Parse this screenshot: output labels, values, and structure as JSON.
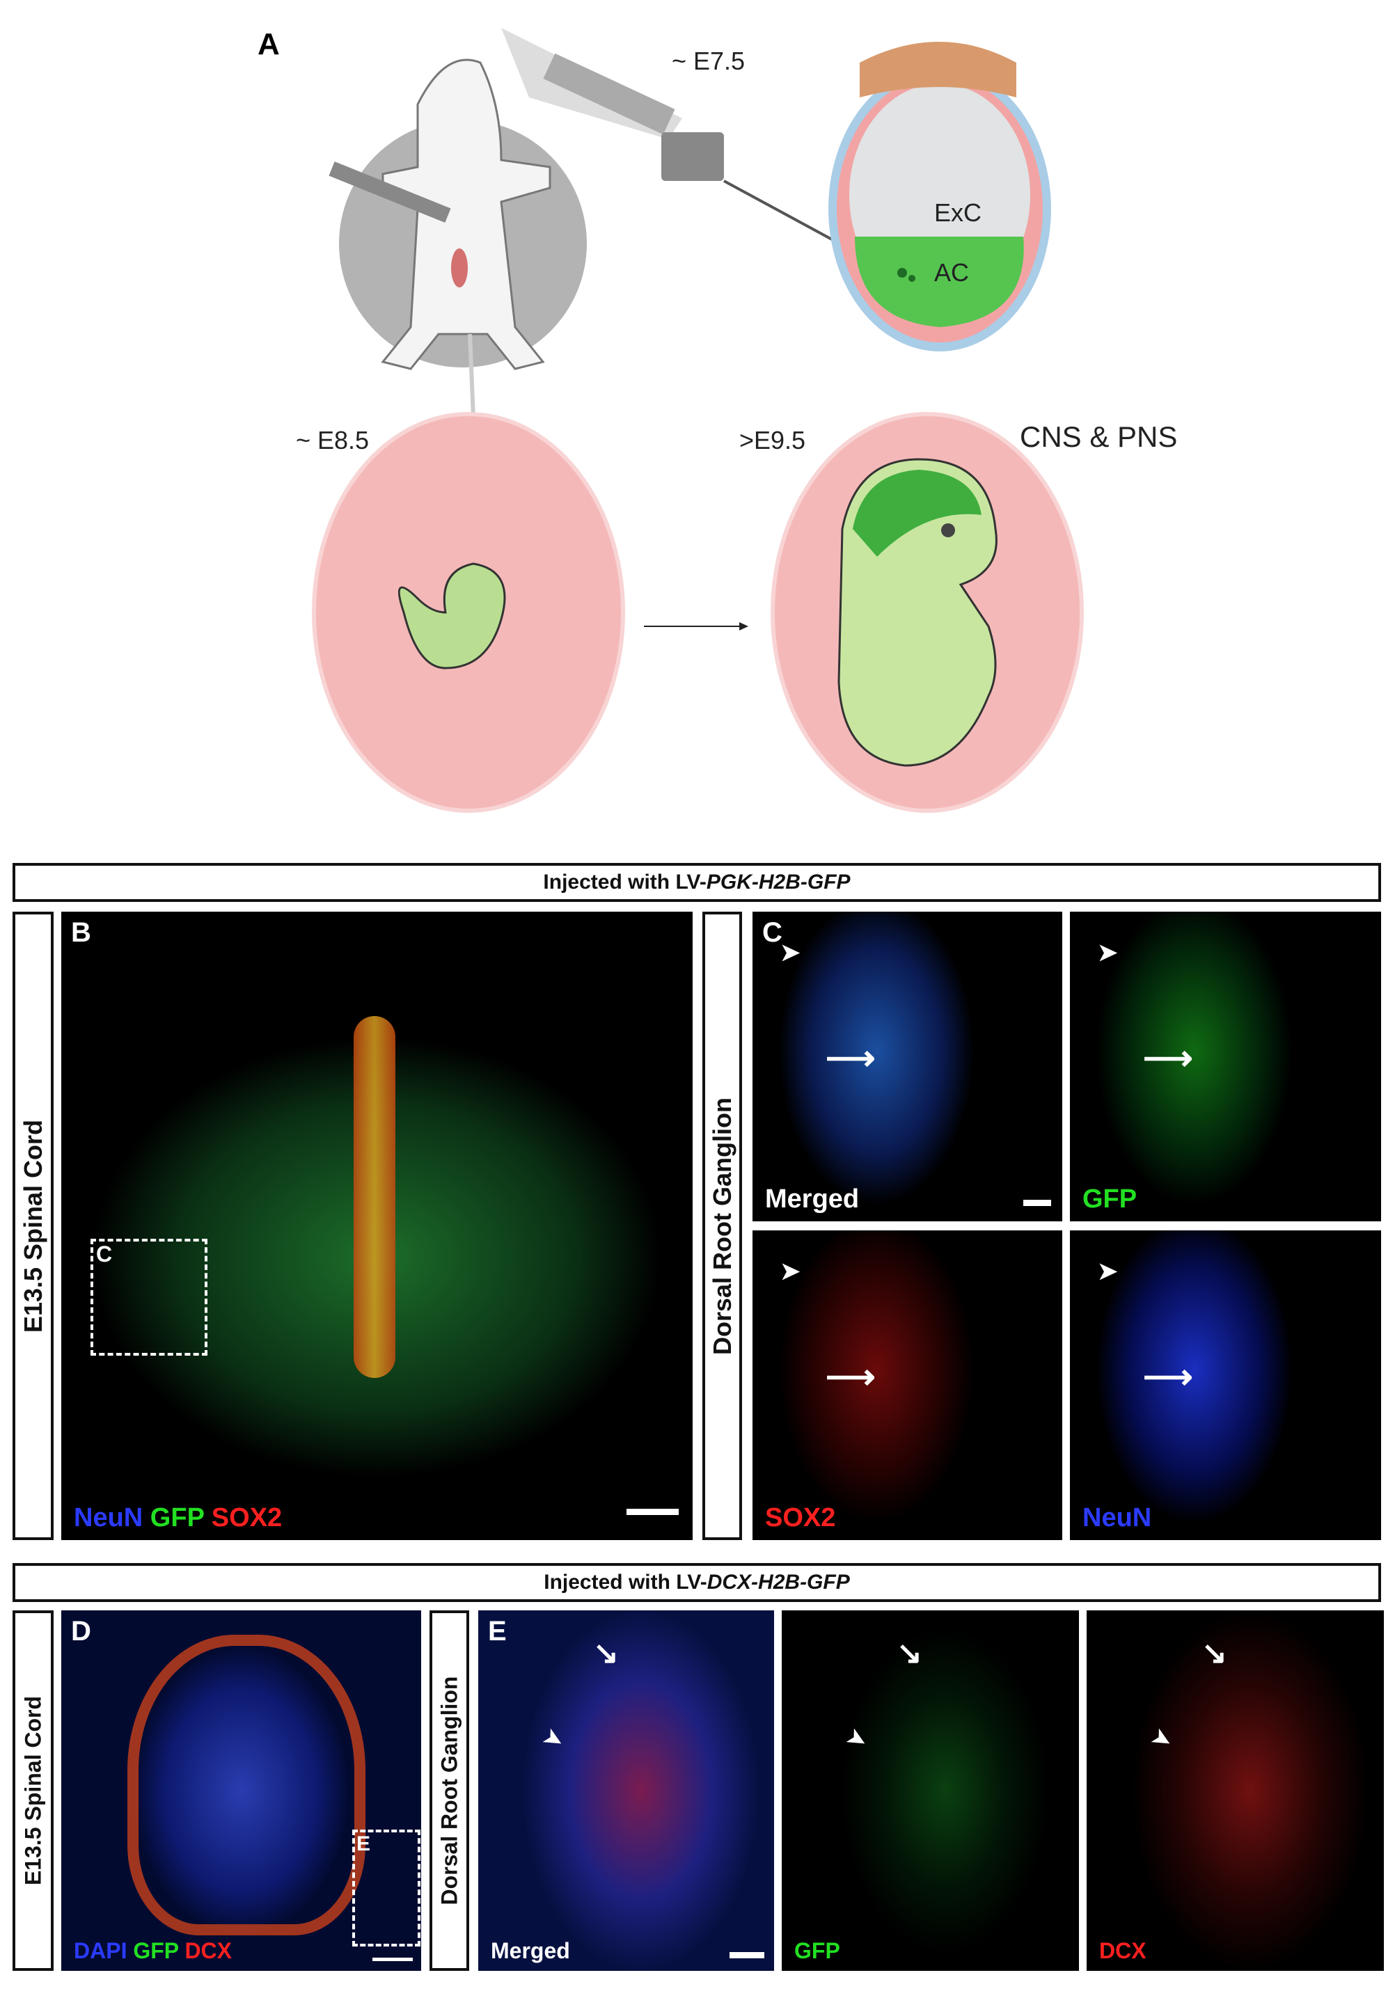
{
  "panel_a": {
    "label": "A",
    "stage1": "~ E7.5",
    "stage2": "~ E8.5",
    "stage3": ">E9.5",
    "cns_pns": "CNS & PNS",
    "exc": "ExC",
    "ac": "AC"
  },
  "header_1": {
    "prefix": "Injected with LV-",
    "italic": "PGK-H2B-GFP"
  },
  "header_2": {
    "prefix": "Injected with LV-",
    "italic": "DCX-H2B-GFP"
  },
  "row1": {
    "side_label": "E13.5 Spinal Cord",
    "drg_label": "Dorsal Root Ganglion",
    "b": {
      "label": "B",
      "inset_label": "C",
      "legend": [
        {
          "text": "NeuN",
          "color": "#2b3bff"
        },
        {
          "text": "GFP",
          "color": "#22e022"
        },
        {
          "text": "SOX2",
          "color": "#ff2020"
        }
      ]
    },
    "c": {
      "label": "C",
      "panels": [
        {
          "caption": "Merged",
          "color": "#ffffff"
        },
        {
          "caption": "GFP",
          "color": "#22e022"
        },
        {
          "caption": "SOX2",
          "color": "#ff2020"
        },
        {
          "caption": "NeuN",
          "color": "#2b3bff"
        }
      ]
    }
  },
  "row2": {
    "side_label": "E13.5 Spinal Cord",
    "drg_label": "Dorsal Root Ganglion",
    "d": {
      "label": "D",
      "inset_label": "E",
      "legend": [
        {
          "text": "DAPI",
          "color": "#2b3bff"
        },
        {
          "text": "GFP",
          "color": "#22e022"
        },
        {
          "text": "DCX",
          "color": "#ff2020"
        }
      ]
    },
    "e": {
      "label": "E",
      "panels": [
        {
          "caption": "Merged",
          "color": "#ffffff"
        },
        {
          "caption": "GFP",
          "color": "#22e022"
        },
        {
          "caption": "DCX",
          "color": "#ff2020"
        }
      ]
    }
  }
}
